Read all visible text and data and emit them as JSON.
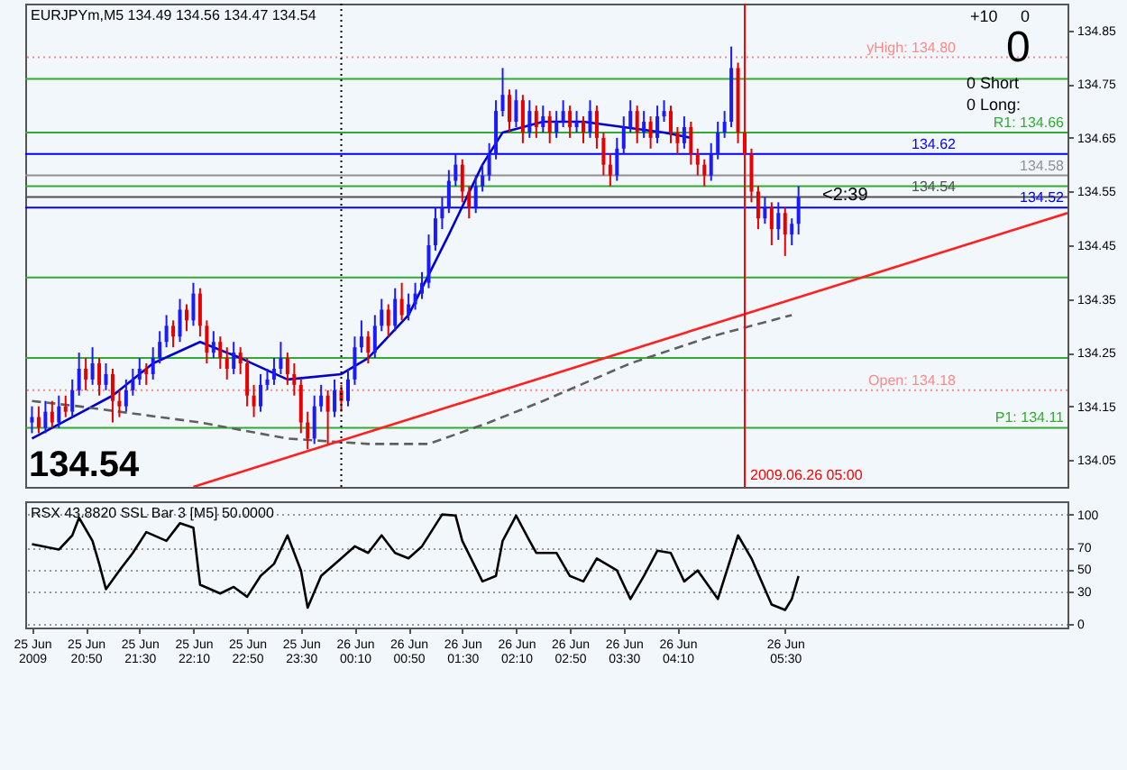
{
  "chart_data": [
    {
      "type": "candlestick",
      "title": "EURJPYm,M5  134.49 134.56 134.47 134.54",
      "x": [
        "2009-06-25T20:10",
        "2009-06-25T20:15",
        "2009-06-25T20:20",
        "2009-06-25T20:25",
        "2009-06-25T20:30",
        "2009-06-25T20:35",
        "2009-06-25T20:40",
        "2009-06-25T20:45",
        "2009-06-25T20:50",
        "2009-06-25T20:55",
        "2009-06-25T21:00",
        "2009-06-25T21:05",
        "2009-06-25T21:10",
        "2009-06-25T21:15",
        "2009-06-25T21:20",
        "2009-06-25T21:25",
        "2009-06-25T21:30",
        "2009-06-25T21:35",
        "2009-06-25T21:40",
        "2009-06-25T21:45",
        "2009-06-25T21:50",
        "2009-06-25T21:55",
        "2009-06-25T22:00",
        "2009-06-25T22:05",
        "2009-06-25T22:10",
        "2009-06-25T22:15",
        "2009-06-25T22:20",
        "2009-06-25T22:25",
        "2009-06-25T22:30",
        "2009-06-25T22:35",
        "2009-06-25T22:40",
        "2009-06-25T22:45",
        "2009-06-25T22:50",
        "2009-06-25T22:55",
        "2009-06-25T23:00",
        "2009-06-25T23:05",
        "2009-06-25T23:10",
        "2009-06-25T23:15",
        "2009-06-25T23:20",
        "2009-06-25T23:25",
        "2009-06-25T23:30",
        "2009-06-25T23:35",
        "2009-06-25T23:40",
        "2009-06-25T23:45",
        "2009-06-25T23:50",
        "2009-06-25T23:55",
        "2009-06-26T00:00",
        "2009-06-26T00:05",
        "2009-06-26T00:10",
        "2009-06-26T00:15",
        "2009-06-26T00:20",
        "2009-06-26T00:25",
        "2009-06-26T00:30",
        "2009-06-26T00:35",
        "2009-06-26T00:40",
        "2009-06-26T00:45",
        "2009-06-26T00:50",
        "2009-06-26T00:55",
        "2009-06-26T01:00",
        "2009-06-26T01:05",
        "2009-06-26T01:10",
        "2009-06-26T01:15",
        "2009-06-26T01:20",
        "2009-06-26T01:25",
        "2009-06-26T01:30",
        "2009-06-26T01:35",
        "2009-06-26T01:40",
        "2009-06-26T01:45",
        "2009-06-26T01:50",
        "2009-06-26T01:55",
        "2009-06-26T02:00",
        "2009-06-26T02:05",
        "2009-06-26T02:10",
        "2009-06-26T02:15",
        "2009-06-26T02:20",
        "2009-06-26T02:25",
        "2009-06-26T02:30",
        "2009-06-26T02:35",
        "2009-06-26T02:40",
        "2009-06-26T02:45",
        "2009-06-26T02:50",
        "2009-06-26T02:55",
        "2009-06-26T03:00",
        "2009-06-26T03:05",
        "2009-06-26T03:10",
        "2009-06-26T03:15",
        "2009-06-26T03:20",
        "2009-06-26T03:25",
        "2009-06-26T03:30",
        "2009-06-26T03:35",
        "2009-06-26T03:40",
        "2009-06-26T03:45",
        "2009-06-26T03:50",
        "2009-06-26T03:55",
        "2009-06-26T04:00",
        "2009-06-26T04:05",
        "2009-06-26T04:10",
        "2009-06-26T04:15",
        "2009-06-26T04:20",
        "2009-06-26T04:25",
        "2009-06-26T04:30",
        "2009-06-26T04:35",
        "2009-06-26T04:40",
        "2009-06-26T04:45",
        "2009-06-26T04:50",
        "2009-06-26T04:55",
        "2009-06-26T05:00",
        "2009-06-26T05:05",
        "2009-06-26T05:10",
        "2009-06-26T05:15",
        "2009-06-26T05:20",
        "2009-06-26T05:25",
        "2009-06-26T05:30",
        "2009-06-26T05:35",
        "2009-06-26T05:40"
      ],
      "ohlc": [
        [
          134.12,
          134.15,
          134.1,
          134.13
        ],
        [
          134.13,
          134.15,
          134.1,
          134.11
        ],
        [
          134.11,
          134.16,
          134.1,
          134.14
        ],
        [
          134.14,
          134.16,
          134.11,
          134.12
        ],
        [
          134.12,
          134.17,
          134.11,
          134.15
        ],
        [
          134.15,
          134.17,
          134.13,
          134.14
        ],
        [
          134.14,
          134.2,
          134.13,
          134.18
        ],
        [
          134.18,
          134.25,
          134.17,
          134.22
        ],
        [
          134.22,
          134.24,
          134.18,
          134.2
        ],
        [
          134.2,
          134.26,
          134.19,
          134.23
        ],
        [
          134.23,
          134.24,
          134.17,
          134.19
        ],
        [
          134.19,
          134.23,
          134.18,
          134.21
        ],
        [
          134.21,
          134.22,
          134.12,
          134.16
        ],
        [
          134.16,
          134.18,
          134.13,
          134.15
        ],
        [
          134.15,
          134.2,
          134.14,
          134.18
        ],
        [
          134.18,
          134.22,
          134.17,
          134.2
        ],
        [
          134.2,
          134.24,
          134.19,
          134.22
        ],
        [
          134.22,
          134.23,
          134.19,
          134.21
        ],
        [
          134.21,
          134.26,
          134.2,
          134.24
        ],
        [
          134.24,
          134.29,
          134.23,
          134.27
        ],
        [
          134.27,
          134.32,
          134.26,
          134.3
        ],
        [
          134.3,
          134.31,
          134.26,
          134.28
        ],
        [
          134.28,
          134.35,
          134.27,
          134.33
        ],
        [
          134.33,
          134.34,
          134.29,
          134.31
        ],
        [
          134.31,
          134.38,
          134.3,
          134.36
        ],
        [
          134.36,
          134.37,
          134.28,
          134.3
        ],
        [
          134.3,
          134.31,
          134.23,
          134.25
        ],
        [
          134.25,
          134.29,
          134.24,
          134.27
        ],
        [
          134.27,
          134.28,
          134.22,
          134.24
        ],
        [
          134.24,
          134.26,
          134.2,
          134.22
        ],
        [
          134.22,
          134.27,
          134.21,
          134.25
        ],
        [
          134.25,
          134.26,
          134.21,
          134.23
        ],
        [
          134.23,
          134.24,
          134.15,
          134.17
        ],
        [
          134.17,
          134.19,
          134.13,
          134.15
        ],
        [
          134.15,
          134.21,
          134.14,
          134.19
        ],
        [
          134.19,
          134.22,
          134.18,
          134.2
        ],
        [
          134.2,
          134.24,
          134.19,
          134.22
        ],
        [
          134.22,
          134.27,
          134.21,
          134.24
        ],
        [
          134.24,
          134.25,
          134.19,
          134.21
        ],
        [
          134.21,
          134.23,
          134.17,
          134.19
        ],
        [
          134.19,
          134.2,
          134.1,
          134.12
        ],
        [
          134.12,
          134.14,
          134.07,
          134.09
        ],
        [
          134.09,
          134.17,
          134.08,
          134.15
        ],
        [
          134.15,
          134.19,
          134.14,
          134.17
        ],
        [
          134.17,
          134.18,
          134.08,
          134.14
        ],
        [
          134.14,
          134.2,
          134.13,
          134.18
        ],
        [
          134.18,
          134.19,
          134.14,
          134.16
        ],
        [
          134.16,
          134.22,
          134.15,
          134.2
        ],
        [
          134.2,
          134.28,
          134.19,
          134.26
        ],
        [
          134.26,
          134.31,
          134.25,
          134.28
        ],
        [
          134.28,
          134.29,
          134.23,
          134.25
        ],
        [
          134.25,
          134.32,
          134.24,
          134.3
        ],
        [
          134.3,
          134.35,
          134.29,
          134.33
        ],
        [
          134.33,
          134.34,
          134.28,
          134.3
        ],
        [
          134.3,
          134.37,
          134.29,
          134.35
        ],
        [
          134.35,
          134.38,
          134.31,
          134.32
        ],
        [
          134.32,
          134.36,
          134.31,
          134.34
        ],
        [
          134.34,
          134.38,
          134.33,
          134.36
        ],
        [
          134.36,
          134.4,
          134.35,
          134.38
        ],
        [
          134.38,
          134.47,
          134.37,
          134.45
        ],
        [
          134.45,
          134.52,
          134.44,
          134.5
        ],
        [
          134.5,
          134.54,
          134.48,
          134.52
        ],
        [
          134.52,
          134.59,
          134.51,
          134.57
        ],
        [
          134.57,
          134.62,
          134.56,
          134.6
        ],
        [
          134.6,
          134.61,
          134.53,
          134.55
        ],
        [
          134.55,
          134.56,
          134.5,
          134.52
        ],
        [
          134.52,
          134.58,
          134.51,
          134.56
        ],
        [
          134.56,
          134.6,
          134.55,
          134.58
        ],
        [
          134.58,
          134.64,
          134.57,
          134.62
        ],
        [
          134.62,
          134.72,
          134.61,
          134.7
        ],
        [
          134.7,
          134.78,
          134.69,
          134.73
        ],
        [
          134.73,
          134.74,
          134.66,
          134.68
        ],
        [
          134.68,
          134.74,
          134.67,
          134.72
        ],
        [
          134.72,
          134.73,
          134.64,
          134.66
        ],
        [
          134.66,
          134.72,
          134.65,
          134.7
        ],
        [
          134.7,
          134.71,
          134.65,
          134.67
        ],
        [
          134.67,
          134.71,
          134.66,
          134.69
        ],
        [
          134.69,
          134.7,
          134.64,
          134.66
        ],
        [
          134.66,
          134.7,
          134.65,
          134.68
        ],
        [
          134.68,
          134.72,
          134.67,
          134.7
        ],
        [
          134.7,
          134.71,
          134.65,
          134.67
        ],
        [
          134.67,
          134.7,
          134.66,
          134.68
        ],
        [
          134.68,
          134.69,
          134.64,
          134.66
        ],
        [
          134.66,
          134.72,
          134.65,
          134.7
        ],
        [
          134.7,
          134.71,
          134.63,
          134.65
        ],
        [
          134.65,
          134.66,
          134.58,
          134.6
        ],
        [
          134.6,
          134.62,
          134.56,
          134.58
        ],
        [
          134.58,
          134.65,
          134.57,
          134.63
        ],
        [
          134.63,
          134.69,
          134.62,
          134.67
        ],
        [
          134.67,
          134.72,
          134.66,
          134.7
        ],
        [
          134.7,
          134.71,
          134.64,
          134.66
        ],
        [
          134.66,
          134.7,
          134.65,
          134.68
        ],
        [
          134.68,
          134.69,
          134.63,
          134.65
        ],
        [
          134.65,
          134.71,
          134.64,
          134.69
        ],
        [
          134.69,
          134.72,
          134.68,
          134.7
        ],
        [
          134.7,
          134.71,
          134.64,
          134.66
        ],
        [
          134.66,
          134.67,
          134.62,
          134.64
        ],
        [
          134.64,
          134.69,
          134.63,
          134.67
        ],
        [
          134.67,
          134.68,
          134.6,
          134.62
        ],
        [
          134.62,
          134.63,
          134.58,
          134.6
        ],
        [
          134.6,
          134.61,
          134.56,
          134.58
        ],
        [
          134.58,
          134.64,
          134.57,
          134.62
        ],
        [
          134.62,
          134.68,
          134.61,
          134.66
        ],
        [
          134.66,
          134.7,
          134.65,
          134.68
        ],
        [
          134.68,
          134.82,
          134.67,
          134.78
        ],
        [
          134.78,
          134.79,
          134.64,
          134.66
        ],
        [
          134.66,
          134.67,
          134.6,
          134.62
        ],
        [
          134.62,
          134.63,
          134.53,
          134.55
        ],
        [
          134.55,
          134.56,
          134.48,
          134.5
        ],
        [
          134.5,
          134.54,
          134.49,
          134.52
        ],
        [
          134.52,
          134.53,
          134.45,
          134.48
        ],
        [
          134.48,
          134.53,
          134.46,
          134.51
        ],
        [
          134.51,
          134.52,
          134.43,
          134.47
        ],
        [
          134.47,
          134.5,
          134.45,
          134.49
        ],
        [
          134.49,
          134.56,
          134.47,
          134.54
        ]
      ],
      "series": [
        {
          "type": "line",
          "color": "#0000cc",
          "x": [
            "2009-06-25T20:10",
            "2009-06-25T20:40",
            "2009-06-25T21:10",
            "2009-06-25T21:40",
            "2009-06-25T22:15",
            "2009-06-25T22:45",
            "2009-06-25T23:20",
            "2009-06-26T00:00",
            "2009-06-26T00:20",
            "2009-06-26T00:50",
            "2009-06-26T01:20",
            "2009-06-26T01:45",
            "2009-06-26T02:00",
            "2009-06-26T02:30",
            "2009-06-26T03:00",
            "2009-06-26T03:30",
            "2009-06-26T04:00",
            "2009-06-26T04:20"
          ],
          "values": [
            134.09,
            134.13,
            134.17,
            134.23,
            134.27,
            134.24,
            134.2,
            134.21,
            134.24,
            134.32,
            134.47,
            134.6,
            134.66,
            134.68,
            134.68,
            134.67,
            134.66,
            134.65
          ]
        },
        {
          "type": "line",
          "color": "#606060",
          "line_style": "dashed",
          "x": [
            "2009-06-25T20:10",
            "2009-06-25T20:45",
            "2009-06-25T22:15",
            "2009-06-25T23:20",
            "2009-06-26T00:20",
            "2009-06-26T01:05",
            "2009-06-26T01:50",
            "2009-06-26T02:30",
            "2009-06-26T03:35",
            "2009-06-26T04:35",
            "2009-06-26T05:35"
          ],
          "values": [
            134.16,
            134.15,
            134.12,
            134.09,
            134.08,
            134.08,
            134.12,
            134.16,
            134.23,
            134.28,
            134.32
          ]
        },
        {
          "type": "line",
          "color": "#ff2020",
          "x": [
            "2009-06-25T22:10",
            "2009-06-26T09:00"
          ],
          "values": [
            134.0,
            134.51
          ]
        }
      ],
      "xlim": [
        "2009-06-25T20:05",
        "2009-06-26T09:00"
      ],
      "xticks": [
        "2009-06-25T20:10",
        "2009-06-25T20:50",
        "2009-06-25T21:30",
        "2009-06-25T22:10",
        "2009-06-25T22:50",
        "2009-06-25T23:30",
        "2009-06-26T00:10",
        "2009-06-26T00:50",
        "2009-06-26T01:30",
        "2009-06-26T02:10",
        "2009-06-26T02:50",
        "2009-06-26T03:30",
        "2009-06-26T04:10",
        "2009-06-26T05:30"
      ],
      "ylim": [
        134.0,
        134.9
      ],
      "yticks": [
        134.05,
        134.15,
        134.25,
        134.35,
        134.45,
        134.55,
        134.65,
        134.75,
        134.85
      ],
      "tick_labels": "y",
      "ref_lines": [
        {
          "axis": "y",
          "value": 134.8,
          "label": "yHigh: 134.80",
          "color": "#ff8888",
          "line_style": "dotted"
        },
        {
          "axis": "y",
          "value": 134.76,
          "color": "#33aa33"
        },
        {
          "axis": "y",
          "value": 134.66,
          "label": "R1: 134.66",
          "color": "#33aa33"
        },
        {
          "axis": "y",
          "value": 134.62,
          "label": "134.62",
          "color": "#0000ff"
        },
        {
          "axis": "y",
          "value": 134.58,
          "label": "134.58",
          "color": "#909090"
        },
        {
          "axis": "y",
          "value": 134.56,
          "color": "#33aa33"
        },
        {
          "axis": "y",
          "value": 134.54,
          "label": "134.54",
          "color": "#505050"
        },
        {
          "axis": "y",
          "value": 134.52,
          "label": "134.52",
          "color": "#0000ff"
        },
        {
          "axis": "y",
          "value": 134.39,
          "color": "#33aa33"
        },
        {
          "axis": "y",
          "value": 134.24,
          "color": "#33aa33"
        },
        {
          "axis": "y",
          "value": 134.18,
          "label": "Open: 134.18",
          "color": "#ff8888",
          "line_style": "dotted"
        },
        {
          "axis": "y",
          "value": 134.11,
          "label": "P1: 134.11",
          "color": "#33aa33"
        },
        {
          "axis": "x",
          "value": "2009-06-26T00:00",
          "color": "#000000",
          "line_style": "dotted"
        },
        {
          "axis": "x",
          "value": "2009-06-26T05:00",
          "label": "2009.06.26 05:00",
          "color": "#ff0000"
        }
      ],
      "annotations": [
        "134.54",
        "+10",
        "0",
        "0",
        "0 Short",
        "0 Long:",
        "<2:39"
      ]
    },
    {
      "type": "line",
      "title": "RSX 43.8820  SSL Bar 3 [M5] 50.0000",
      "series": [
        {
          "color": "#000000",
          "x": [
            "2009-06-25T20:10",
            "2009-06-25T20:30",
            "2009-06-25T20:40",
            "2009-06-25T20:45",
            "2009-06-25T20:55",
            "2009-06-25T21:00",
            "2009-06-25T21:05",
            "2009-06-25T21:15",
            "2009-06-25T21:25",
            "2009-06-25T21:35",
            "2009-06-25T21:50",
            "2009-06-25T22:00",
            "2009-06-25T22:10",
            "2009-06-25T22:15",
            "2009-06-25T22:30",
            "2009-06-25T22:40",
            "2009-06-25T22:50",
            "2009-06-25T23:00",
            "2009-06-25T23:10",
            "2009-06-25T23:20",
            "2009-06-25T23:30",
            "2009-06-25T23:35",
            "2009-06-25T23:45",
            "2009-06-26T00:00",
            "2009-06-26T00:10",
            "2009-06-26T00:20",
            "2009-06-26T00:30",
            "2009-06-26T00:40",
            "2009-06-26T00:50",
            "2009-06-26T01:00",
            "2009-06-26T01:15",
            "2009-06-26T01:25",
            "2009-06-26T01:30",
            "2009-06-26T01:45",
            "2009-06-26T01:55",
            "2009-06-26T02:00",
            "2009-06-26T02:10",
            "2009-06-26T02:20",
            "2009-06-26T02:25",
            "2009-06-26T02:40",
            "2009-06-26T02:50",
            "2009-06-26T03:00",
            "2009-06-26T03:10",
            "2009-06-26T03:25",
            "2009-06-26T03:35",
            "2009-06-26T03:45",
            "2009-06-26T03:55",
            "2009-06-26T04:05",
            "2009-06-26T04:15",
            "2009-06-26T04:25",
            "2009-06-26T04:40",
            "2009-06-26T04:55",
            "2009-06-26T05:05",
            "2009-06-26T05:20",
            "2009-06-26T05:30",
            "2009-06-26T05:35",
            "2009-06-26T05:40"
          ],
          "values": [
            73,
            68,
            81,
            97,
            76,
            55,
            32,
            49,
            65,
            84,
            76,
            92,
            88,
            36,
            28,
            34,
            25,
            44,
            55,
            81,
            49,
            15,
            44,
            60,
            71,
            65,
            81,
            65,
            60,
            71,
            100,
            99,
            76,
            39,
            44,
            76,
            99,
            76,
            65,
            65,
            44,
            39,
            60,
            49,
            23,
            44,
            67,
            65,
            39,
            49,
            23,
            81,
            60,
            18,
            13,
            23,
            44
          ]
        }
      ],
      "xlim": [
        "2009-06-25T20:05",
        "2009-06-26T09:00"
      ],
      "xticks": [
        {
          "value": "2009-06-25T20:10",
          "label": "25 Jun 2009"
        },
        {
          "value": "2009-06-25T20:50",
          "label": "25 Jun 20:50"
        },
        {
          "value": "2009-06-25T21:30",
          "label": "25 Jun 21:30"
        },
        {
          "value": "2009-06-25T22:10",
          "label": "25 Jun 22:10"
        },
        {
          "value": "2009-06-25T22:50",
          "label": "25 Jun 22:50"
        },
        {
          "value": "2009-06-25T23:30",
          "label": "25 Jun 23:30"
        },
        {
          "value": "2009-06-26T00:10",
          "label": "26 Jun 00:10"
        },
        {
          "value": "2009-06-26T00:50",
          "label": "26 Jun 00:50"
        },
        {
          "value": "2009-06-26T01:30",
          "label": "26 Jun 01:30"
        },
        {
          "value": "2009-06-26T02:10",
          "label": "26 Jun 02:10"
        },
        {
          "value": "2009-06-26T02:50",
          "label": "26 Jun 02:50"
        },
        {
          "value": "2009-06-26T03:30",
          "label": "26 Jun 03:30"
        },
        {
          "value": "2009-06-26T04:10",
          "label": "26 Jun 04:10"
        },
        {
          "value": "2009-06-26T05:30",
          "label": "26 Jun 05:30"
        }
      ],
      "ylim": [
        -3,
        112
      ],
      "yticks": [
        0,
        30,
        50,
        70,
        100
      ],
      "grid": "y"
    }
  ]
}
